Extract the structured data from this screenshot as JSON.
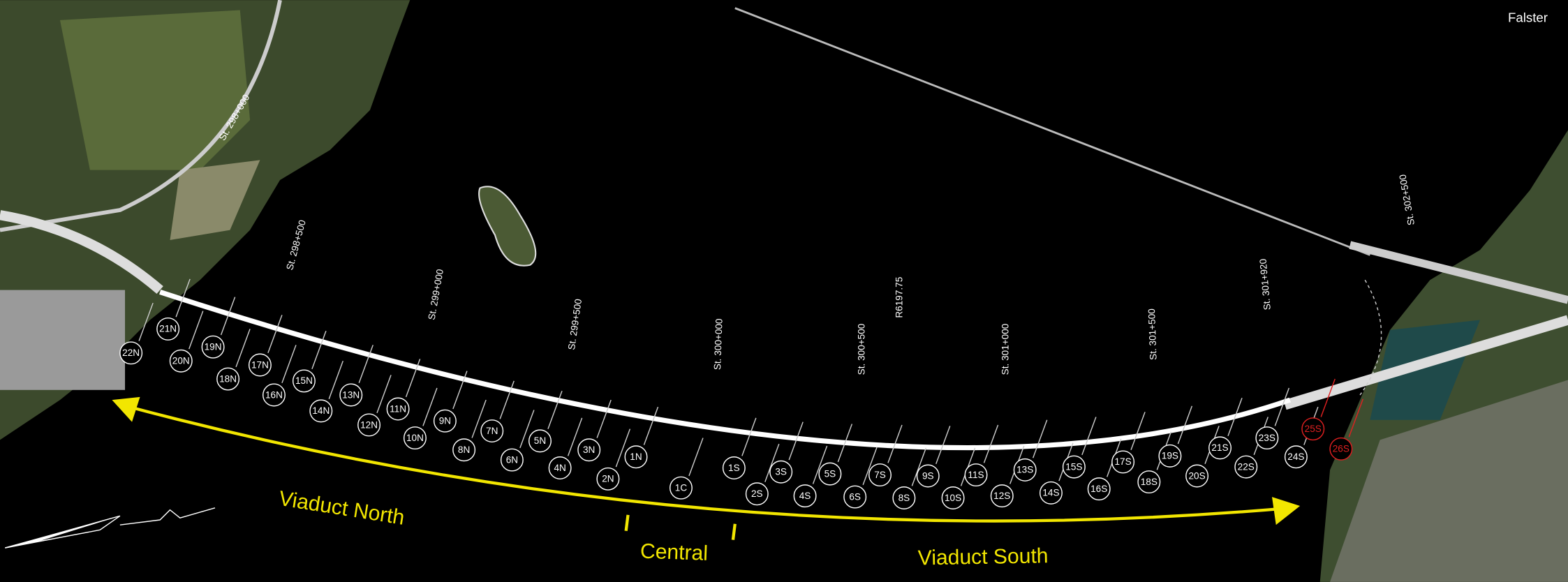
{
  "place_label": "Falster",
  "stations": [
    "St. 298+000",
    "St. 298+500",
    "St. 299+000",
    "St. 299+500",
    "St. 300+000",
    "St. 300+500",
    "R6197.75",
    "St. 301+000",
    "St. 301+500",
    "St. 301+920",
    "St. 302+500"
  ],
  "piers": [
    "22N",
    "21N",
    "20N",
    "19N",
    "18N",
    "17N",
    "16N",
    "15N",
    "14N",
    "13N",
    "12N",
    "11N",
    "10N",
    "9N",
    "8N",
    "7N",
    "6N",
    "5N",
    "4N",
    "3N",
    "2N",
    "1N",
    "1C",
    "1S",
    "2S",
    "3S",
    "4S",
    "5S",
    "6S",
    "7S",
    "8S",
    "9S",
    "10S",
    "11S",
    "12S",
    "13S",
    "14S",
    "15S",
    "16S",
    "17S",
    "18S",
    "19S",
    "20S",
    "21S",
    "22S",
    "23S",
    "24S",
    "25S",
    "26S"
  ],
  "sections": [
    "Viaduct North",
    "Central",
    "Viaduct South"
  ]
}
